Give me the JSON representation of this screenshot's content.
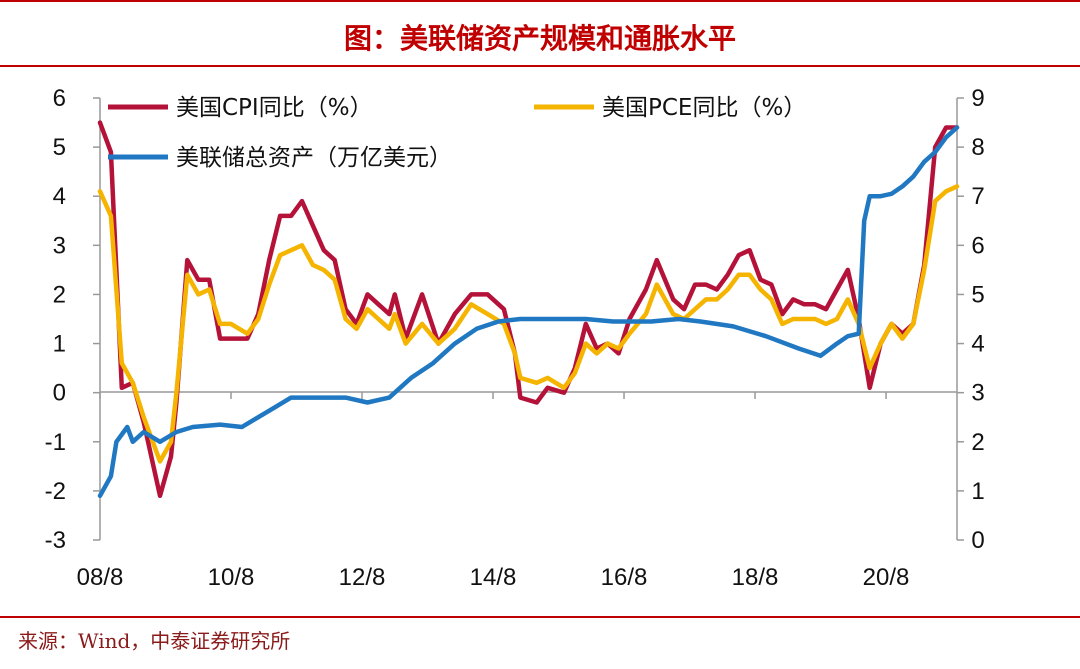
{
  "header": {
    "title": "图：美联储资产规模和通胀水平",
    "accent_color": "#c00000"
  },
  "source": "来源：Wind，中泰证券研究所",
  "chart_data": {
    "type": "line",
    "x_start": "2008-08",
    "x_end": "2021-09",
    "x_ticks": [
      "08/8",
      "10/8",
      "12/8",
      "14/8",
      "16/8",
      "18/8",
      "20/8"
    ],
    "left_axis": {
      "ticks": [
        "6",
        "5",
        "4",
        "3",
        "2",
        "1",
        "0",
        "-1",
        "-2",
        "-3"
      ],
      "ylim": [
        -3,
        6
      ]
    },
    "right_axis": {
      "ticks": [
        "9",
        "8",
        "7",
        "6",
        "5",
        "4",
        "3",
        "2",
        "1",
        "0"
      ],
      "ylim": [
        0,
        9
      ]
    },
    "grid": false,
    "legend_position": "top-left",
    "series": [
      {
        "name": "美国CPI同比（%）",
        "axis": "left",
        "color": "#b5123a",
        "points": [
          [
            "2008-08",
            5.5
          ],
          [
            "2008-10",
            4.9
          ],
          [
            "2008-12",
            0.1
          ],
          [
            "2009-02",
            0.2
          ],
          [
            "2009-04",
            -0.6
          ],
          [
            "2009-07",
            -2.1
          ],
          [
            "2009-09",
            -1.3
          ],
          [
            "2009-10",
            -0.2
          ],
          [
            "2009-12",
            2.7
          ],
          [
            "2010-02",
            2.3
          ],
          [
            "2010-04",
            2.3
          ],
          [
            "2010-06",
            1.1
          ],
          [
            "2010-08",
            1.1
          ],
          [
            "2010-11",
            1.1
          ],
          [
            "2011-01",
            1.6
          ],
          [
            "2011-03",
            2.7
          ],
          [
            "2011-05",
            3.6
          ],
          [
            "2011-07",
            3.6
          ],
          [
            "2011-09",
            3.9
          ],
          [
            "2011-11",
            3.4
          ],
          [
            "2012-01",
            2.9
          ],
          [
            "2012-03",
            2.7
          ],
          [
            "2012-05",
            1.7
          ],
          [
            "2012-07",
            1.4
          ],
          [
            "2012-09",
            2.0
          ],
          [
            "2012-11",
            1.8
          ],
          [
            "2013-01",
            1.6
          ],
          [
            "2013-02",
            2.0
          ],
          [
            "2013-04",
            1.1
          ],
          [
            "2013-07",
            2.0
          ],
          [
            "2013-10",
            1.0
          ],
          [
            "2014-01",
            1.6
          ],
          [
            "2014-04",
            2.0
          ],
          [
            "2014-07",
            2.0
          ],
          [
            "2014-10",
            1.7
          ],
          [
            "2014-12",
            0.8
          ],
          [
            "2015-01",
            -0.1
          ],
          [
            "2015-04",
            -0.2
          ],
          [
            "2015-06",
            0.1
          ],
          [
            "2015-09",
            0.0
          ],
          [
            "2015-11",
            0.5
          ],
          [
            "2016-01",
            1.4
          ],
          [
            "2016-03",
            0.9
          ],
          [
            "2016-05",
            1.0
          ],
          [
            "2016-07",
            0.8
          ],
          [
            "2016-09",
            1.5
          ],
          [
            "2016-12",
            2.1
          ],
          [
            "2017-02",
            2.7
          ],
          [
            "2017-05",
            1.9
          ],
          [
            "2017-07",
            1.7
          ],
          [
            "2017-09",
            2.2
          ],
          [
            "2017-11",
            2.2
          ],
          [
            "2018-01",
            2.1
          ],
          [
            "2018-03",
            2.4
          ],
          [
            "2018-05",
            2.8
          ],
          [
            "2018-07",
            2.9
          ],
          [
            "2018-09",
            2.3
          ],
          [
            "2018-11",
            2.2
          ],
          [
            "2019-01",
            1.6
          ],
          [
            "2019-03",
            1.9
          ],
          [
            "2019-05",
            1.8
          ],
          [
            "2019-07",
            1.8
          ],
          [
            "2019-09",
            1.7
          ],
          [
            "2019-11",
            2.1
          ],
          [
            "2020-01",
            2.5
          ],
          [
            "2020-03",
            1.5
          ],
          [
            "2020-05",
            0.1
          ],
          [
            "2020-07",
            1.0
          ],
          [
            "2020-09",
            1.4
          ],
          [
            "2020-11",
            1.2
          ],
          [
            "2021-01",
            1.4
          ],
          [
            "2021-03",
            2.6
          ],
          [
            "2021-05",
            5.0
          ],
          [
            "2021-07",
            5.4
          ],
          [
            "2021-09",
            5.4
          ]
        ]
      },
      {
        "name": "美国PCE同比（%）",
        "axis": "left",
        "color": "#f5b400",
        "points": [
          [
            "2008-08",
            4.1
          ],
          [
            "2008-10",
            3.6
          ],
          [
            "2008-12",
            0.6
          ],
          [
            "2009-02",
            0.2
          ],
          [
            "2009-04",
            -0.5
          ],
          [
            "2009-07",
            -1.4
          ],
          [
            "2009-09",
            -1.0
          ],
          [
            "2009-10",
            0.0
          ],
          [
            "2009-12",
            2.4
          ],
          [
            "2010-02",
            2.0
          ],
          [
            "2010-04",
            2.1
          ],
          [
            "2010-06",
            1.4
          ],
          [
            "2010-08",
            1.4
          ],
          [
            "2010-11",
            1.2
          ],
          [
            "2011-01",
            1.5
          ],
          [
            "2011-03",
            2.2
          ],
          [
            "2011-05",
            2.8
          ],
          [
            "2011-07",
            2.9
          ],
          [
            "2011-09",
            3.0
          ],
          [
            "2011-11",
            2.6
          ],
          [
            "2012-01",
            2.5
          ],
          [
            "2012-03",
            2.3
          ],
          [
            "2012-05",
            1.5
          ],
          [
            "2012-07",
            1.3
          ],
          [
            "2012-09",
            1.7
          ],
          [
            "2012-11",
            1.5
          ],
          [
            "2013-01",
            1.3
          ],
          [
            "2013-02",
            1.6
          ],
          [
            "2013-04",
            1.0
          ],
          [
            "2013-07",
            1.4
          ],
          [
            "2013-10",
            1.0
          ],
          [
            "2014-01",
            1.3
          ],
          [
            "2014-04",
            1.8
          ],
          [
            "2014-07",
            1.6
          ],
          [
            "2014-10",
            1.4
          ],
          [
            "2014-12",
            0.8
          ],
          [
            "2015-01",
            0.3
          ],
          [
            "2015-04",
            0.2
          ],
          [
            "2015-06",
            0.3
          ],
          [
            "2015-09",
            0.1
          ],
          [
            "2015-11",
            0.4
          ],
          [
            "2016-01",
            1.0
          ],
          [
            "2016-03",
            0.8
          ],
          [
            "2016-05",
            1.0
          ],
          [
            "2016-07",
            0.9
          ],
          [
            "2016-09",
            1.2
          ],
          [
            "2016-12",
            1.6
          ],
          [
            "2017-02",
            2.2
          ],
          [
            "2017-05",
            1.6
          ],
          [
            "2017-07",
            1.5
          ],
          [
            "2017-09",
            1.7
          ],
          [
            "2017-11",
            1.9
          ],
          [
            "2018-01",
            1.9
          ],
          [
            "2018-03",
            2.1
          ],
          [
            "2018-05",
            2.4
          ],
          [
            "2018-07",
            2.4
          ],
          [
            "2018-09",
            2.1
          ],
          [
            "2018-11",
            1.9
          ],
          [
            "2019-01",
            1.4
          ],
          [
            "2019-03",
            1.5
          ],
          [
            "2019-05",
            1.5
          ],
          [
            "2019-07",
            1.5
          ],
          [
            "2019-09",
            1.4
          ],
          [
            "2019-11",
            1.5
          ],
          [
            "2020-01",
            1.9
          ],
          [
            "2020-03",
            1.4
          ],
          [
            "2020-05",
            0.5
          ],
          [
            "2020-07",
            1.0
          ],
          [
            "2020-09",
            1.4
          ],
          [
            "2020-11",
            1.1
          ],
          [
            "2021-01",
            1.4
          ],
          [
            "2021-03",
            2.5
          ],
          [
            "2021-05",
            3.9
          ],
          [
            "2021-07",
            4.1
          ],
          [
            "2021-09",
            4.2
          ]
        ]
      },
      {
        "name": "美联储总资产（万亿美元）",
        "axis": "right",
        "color": "#1f78c1",
        "points": [
          [
            "2008-08",
            0.9
          ],
          [
            "2008-10",
            1.3
          ],
          [
            "2008-11",
            2.0
          ],
          [
            "2009-01",
            2.3
          ],
          [
            "2009-02",
            2.0
          ],
          [
            "2009-04",
            2.2
          ],
          [
            "2009-07",
            2.0
          ],
          [
            "2009-10",
            2.2
          ],
          [
            "2010-01",
            2.3
          ],
          [
            "2010-06",
            2.35
          ],
          [
            "2010-10",
            2.3
          ],
          [
            "2011-01",
            2.5
          ],
          [
            "2011-04",
            2.7
          ],
          [
            "2011-07",
            2.9
          ],
          [
            "2011-10",
            2.9
          ],
          [
            "2012-01",
            2.9
          ],
          [
            "2012-05",
            2.9
          ],
          [
            "2012-09",
            2.8
          ],
          [
            "2013-01",
            2.9
          ],
          [
            "2013-05",
            3.3
          ],
          [
            "2013-09",
            3.6
          ],
          [
            "2014-01",
            4.0
          ],
          [
            "2014-05",
            4.3
          ],
          [
            "2014-09",
            4.45
          ],
          [
            "2015-01",
            4.5
          ],
          [
            "2015-06",
            4.5
          ],
          [
            "2016-01",
            4.5
          ],
          [
            "2016-06",
            4.45
          ],
          [
            "2017-01",
            4.45
          ],
          [
            "2017-06",
            4.5
          ],
          [
            "2017-10",
            4.45
          ],
          [
            "2018-04",
            4.35
          ],
          [
            "2018-10",
            4.15
          ],
          [
            "2019-04",
            3.9
          ],
          [
            "2019-08",
            3.75
          ],
          [
            "2019-11",
            4.0
          ],
          [
            "2020-01",
            4.15
          ],
          [
            "2020-03",
            4.2
          ],
          [
            "2020-04",
            6.5
          ],
          [
            "2020-05",
            7.0
          ],
          [
            "2020-07",
            7.0
          ],
          [
            "2020-09",
            7.05
          ],
          [
            "2020-11",
            7.2
          ],
          [
            "2021-01",
            7.4
          ],
          [
            "2021-03",
            7.7
          ],
          [
            "2021-05",
            7.9
          ],
          [
            "2021-07",
            8.2
          ],
          [
            "2021-09",
            8.4
          ]
        ]
      }
    ]
  }
}
